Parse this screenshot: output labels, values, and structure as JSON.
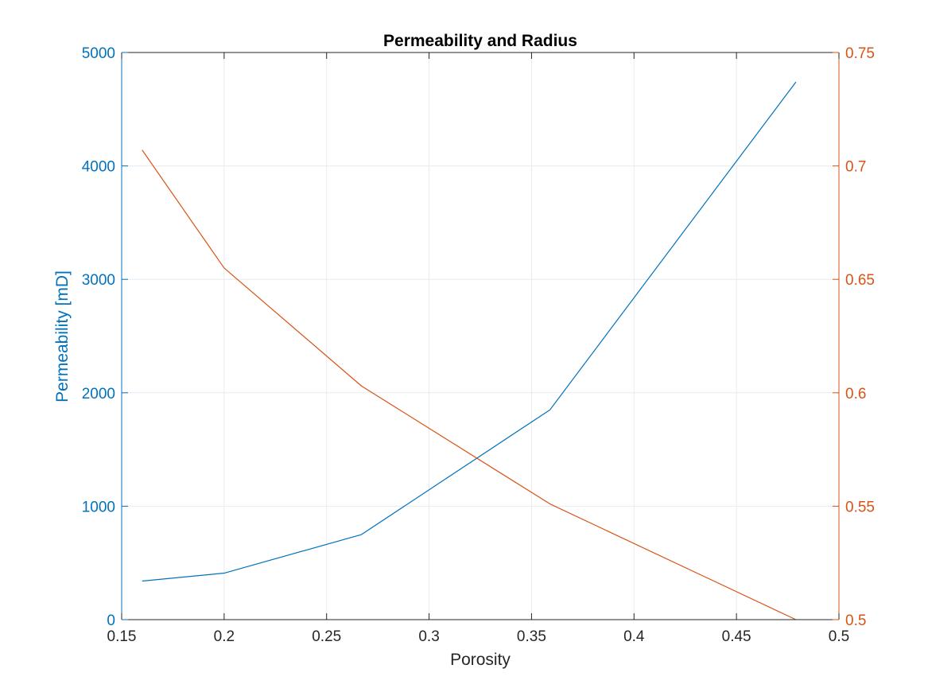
{
  "chart_data": {
    "type": "line",
    "title": "Permeability and Radius",
    "xlabel": "Porosity",
    "ylabel_left": "Permeability [mD]",
    "ylabel_right": "",
    "xlim": [
      0.15,
      0.5
    ],
    "ylim_left": [
      0,
      5000
    ],
    "ylim_right": [
      0.5,
      0.75
    ],
    "xticks": [
      0.15,
      0.2,
      0.25,
      0.3,
      0.35,
      0.4,
      0.45,
      0.5
    ],
    "xtick_labels": [
      "0.15",
      "0.2",
      "0.25",
      "0.3",
      "0.35",
      "0.4",
      "0.45",
      "0.5"
    ],
    "yticks_left": [
      0,
      1000,
      2000,
      3000,
      4000,
      5000
    ],
    "ytick_labels_left": [
      "0",
      "1000",
      "2000",
      "3000",
      "4000",
      "5000"
    ],
    "yticks_right": [
      0.5,
      0.55,
      0.6,
      0.65,
      0.7,
      0.75
    ],
    "ytick_labels_right": [
      "0.5",
      "0.55",
      "0.6",
      "0.65",
      "0.7",
      "0.75"
    ],
    "grid": true,
    "legend": "none",
    "colors": {
      "left_axis": "#0072BD",
      "right_axis": "#D95319",
      "grid": "#e6ecf0",
      "frame": "#262626",
      "text": "#262626"
    },
    "series": [
      {
        "axis": "left",
        "color": "#0072BD",
        "x": [
          0.16,
          0.2,
          0.267,
          0.359,
          0.479
        ],
        "values": [
          340,
          410,
          750,
          1850,
          4740
        ]
      },
      {
        "axis": "right",
        "color": "#D95319",
        "x": [
          0.16,
          0.2,
          0.267,
          0.359,
          0.479
        ],
        "values": [
          0.707,
          0.655,
          0.603,
          0.551,
          0.5
        ]
      }
    ]
  }
}
